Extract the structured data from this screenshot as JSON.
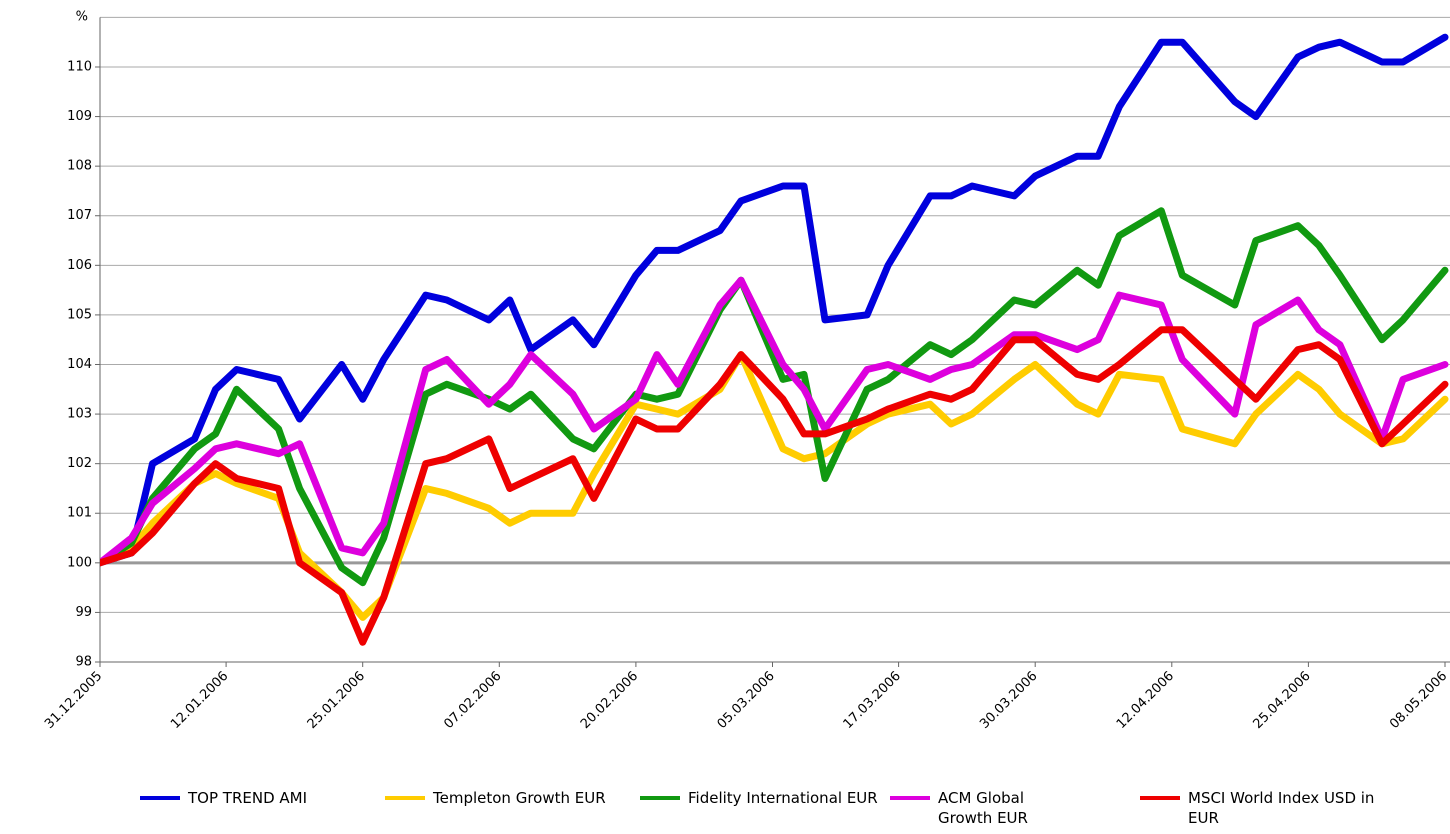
{
  "chart_data": {
    "type": "line",
    "y_label": "%",
    "x": [
      "31.12.2005",
      "03.01.2006",
      "05.01.2006",
      "09.01.2006",
      "11.01.2006",
      "13.01.2006",
      "17.01.2006",
      "19.01.2006",
      "23.01.2006",
      "25.01.2006",
      "27.01.2006",
      "31.01.2006",
      "02.02.2006",
      "06.02.2006",
      "08.02.2006",
      "10.02.2006",
      "14.02.2006",
      "16.02.2006",
      "20.02.2006",
      "22.02.2006",
      "24.02.2006",
      "28.02.2006",
      "02.03.2006",
      "06.03.2006",
      "08.03.2006",
      "10.03.2006",
      "14.03.2006",
      "16.03.2006",
      "20.03.2006",
      "22.03.2006",
      "24.03.2006",
      "28.03.2006",
      "30.03.2006",
      "03.04.2006",
      "05.04.2006",
      "07.04.2006",
      "11.04.2006",
      "13.04.2006",
      "18.04.2006",
      "20.04.2006",
      "24.04.2006",
      "26.04.2006",
      "28.04.2006",
      "02.05.2006",
      "04.05.2006",
      "08.05.2006"
    ],
    "series": [
      {
        "name": "TOP TREND AMI",
        "color": "#0000dd",
        "values": [
          100.0,
          100.2,
          102.0,
          102.5,
          103.5,
          103.9,
          103.7,
          102.9,
          104.0,
          103.3,
          104.1,
          105.4,
          105.3,
          104.9,
          105.3,
          104.3,
          104.9,
          104.4,
          105.8,
          106.3,
          106.3,
          106.7,
          107.3,
          107.6,
          107.6,
          104.9,
          105.0,
          106.0,
          107.4,
          107.4,
          107.6,
          107.4,
          107.8,
          108.2,
          108.2,
          109.2,
          110.5,
          110.5,
          109.3,
          109.0,
          110.2,
          110.4,
          110.5,
          110.1,
          110.1,
          110.6
        ]
      },
      {
        "name": "Templeton Growth EUR",
        "color": "#ffcc00",
        "values": [
          100.0,
          100.3,
          100.8,
          101.6,
          101.8,
          101.6,
          101.3,
          100.2,
          99.4,
          98.9,
          99.3,
          101.5,
          101.4,
          101.1,
          100.8,
          101.0,
          101.0,
          101.8,
          103.2,
          103.1,
          103.0,
          103.5,
          104.2,
          102.3,
          102.1,
          102.2,
          102.8,
          103.0,
          103.2,
          102.8,
          103.0,
          103.7,
          104.0,
          103.2,
          103.0,
          103.8,
          103.7,
          102.7,
          102.4,
          103.0,
          103.8,
          103.5,
          103.0,
          102.4,
          102.5,
          103.3
        ]
      },
      {
        "name": "Fidelity International EUR",
        "color": "#119911",
        "values": [
          100.0,
          100.4,
          101.3,
          102.3,
          102.6,
          103.5,
          102.7,
          101.5,
          99.9,
          99.6,
          100.5,
          103.4,
          103.6,
          103.3,
          103.1,
          103.4,
          102.5,
          102.3,
          103.4,
          103.3,
          103.4,
          105.1,
          105.7,
          103.7,
          103.8,
          101.7,
          103.5,
          103.7,
          104.4,
          104.2,
          104.5,
          105.3,
          105.2,
          105.9,
          105.6,
          106.6,
          107.1,
          105.8,
          105.2,
          106.5,
          106.8,
          106.4,
          105.8,
          104.5,
          104.9,
          105.9
        ]
      },
      {
        "name": "ACM Global Growth EUR",
        "color": "#dd00dd",
        "values": [
          100.0,
          100.5,
          101.2,
          101.9,
          102.3,
          102.4,
          102.2,
          102.4,
          100.3,
          100.2,
          100.8,
          103.9,
          104.1,
          103.2,
          103.6,
          104.2,
          103.4,
          102.7,
          103.3,
          104.2,
          103.6,
          105.2,
          105.7,
          104.0,
          103.5,
          102.7,
          103.9,
          104.0,
          103.7,
          103.9,
          104.0,
          104.6,
          104.6,
          104.3,
          104.5,
          105.4,
          105.2,
          104.1,
          103.0,
          104.8,
          105.3,
          104.7,
          104.4,
          102.5,
          103.7,
          104.0
        ]
      },
      {
        "name": "MSCI World Index USD in EUR",
        "color": "#ee0000",
        "values": [
          100.0,
          100.2,
          100.6,
          101.6,
          102.0,
          101.7,
          101.5,
          100.0,
          99.4,
          98.4,
          99.3,
          102.0,
          102.1,
          102.5,
          101.5,
          101.7,
          102.1,
          101.3,
          102.9,
          102.7,
          102.7,
          103.6,
          104.2,
          103.3,
          102.6,
          102.6,
          102.9,
          103.1,
          103.4,
          103.3,
          103.5,
          104.5,
          104.5,
          103.8,
          103.7,
          104.0,
          104.7,
          104.7,
          103.7,
          103.3,
          104.3,
          104.4,
          104.1,
          102.4,
          102.8,
          103.6
        ]
      }
    ],
    "xlim": [
      "31.12.2005",
      "08.05.2006"
    ],
    "xticks": [
      "31.12.2005",
      "12.01.2006",
      "25.01.2006",
      "07.02.2006",
      "20.02.2006",
      "05.03.2006",
      "17.03.2006",
      "30.03.2006",
      "12.04.2006",
      "25.04.2006",
      "08.05.2006"
    ],
    "ylim": [
      98,
      111
    ],
    "yticks": [
      98,
      99,
      100,
      101,
      102,
      103,
      104,
      105,
      106,
      107,
      108,
      109,
      110
    ],
    "grid": true,
    "legend": "bottom"
  }
}
